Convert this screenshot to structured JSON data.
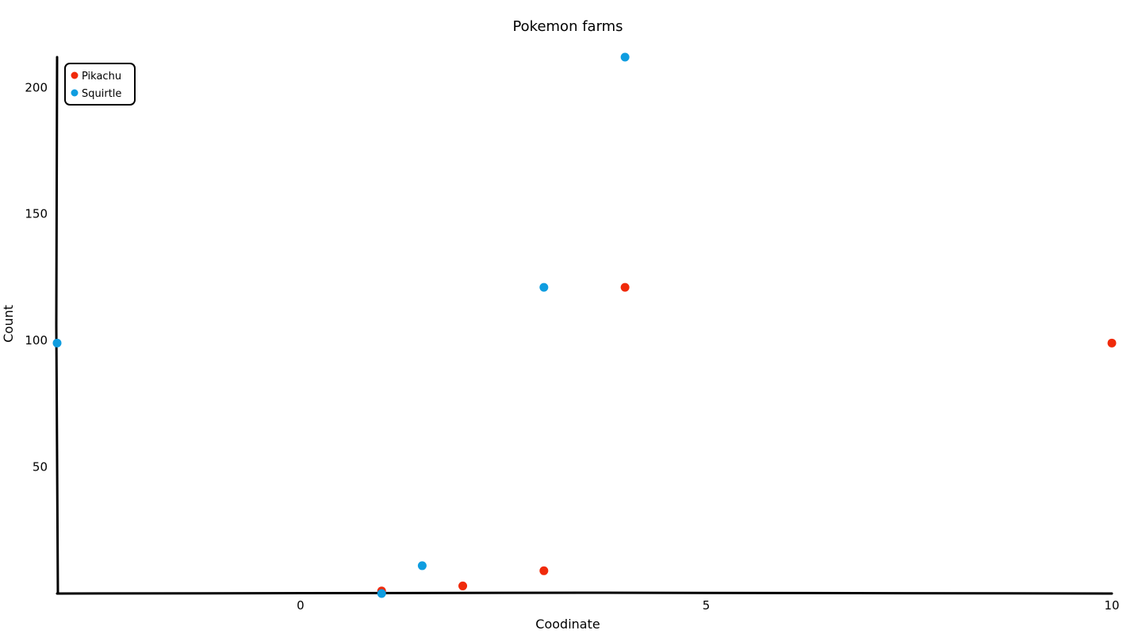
{
  "chart_data": {
    "type": "scatter",
    "title": "Pokemon farms",
    "xlabel": "Coodinate",
    "ylabel": "Count",
    "xlim": [
      -3,
      10
    ],
    "ylim": [
      0,
      212
    ],
    "xticks": [
      0,
      5,
      10
    ],
    "yticks": [
      50,
      100,
      150,
      200
    ],
    "grid": false,
    "legend_position": "top-left",
    "series": [
      {
        "name": "Pikachu",
        "color": "#f02a0a",
        "points": [
          {
            "x": 1,
            "y": 1
          },
          {
            "x": 2,
            "y": 3
          },
          {
            "x": 3,
            "y": 9
          },
          {
            "x": 4,
            "y": 121
          },
          {
            "x": 10,
            "y": 99
          }
        ]
      },
      {
        "name": "Squirtle",
        "color": "#0f9de0",
        "points": [
          {
            "x": -3,
            "y": 99
          },
          {
            "x": 1,
            "y": 0
          },
          {
            "x": 1.5,
            "y": 11
          },
          {
            "x": 3,
            "y": 121
          },
          {
            "x": 4,
            "y": 212
          }
        ]
      }
    ]
  }
}
